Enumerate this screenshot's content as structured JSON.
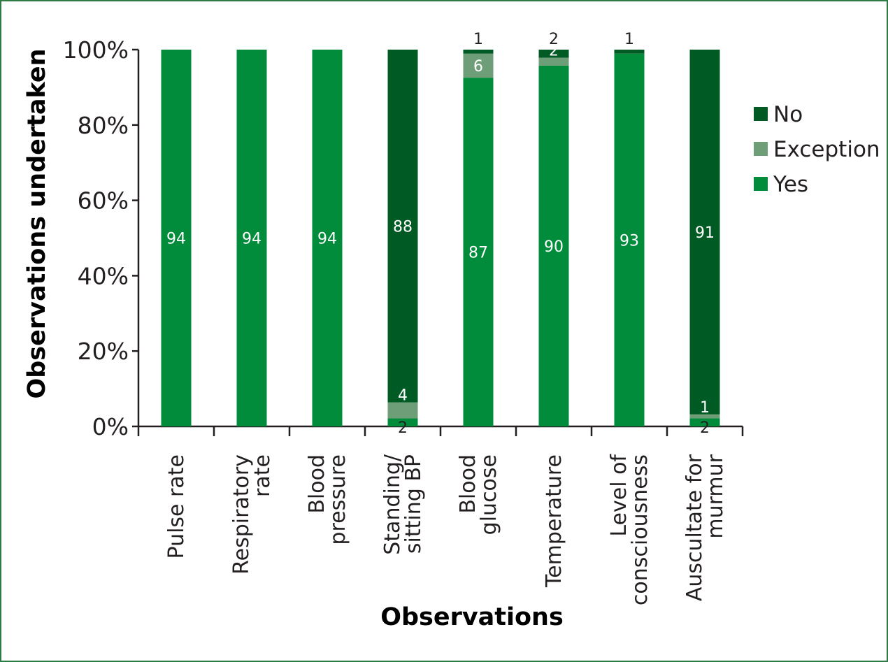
{
  "chart_data": {
    "type": "bar",
    "stacked": true,
    "normalized_percent": true,
    "categories": [
      [
        "Pulse rate"
      ],
      [
        "Respiratory",
        "rate"
      ],
      [
        "Blood",
        "pressure"
      ],
      [
        "Standing/",
        "sitting BP"
      ],
      [
        "Blood",
        "glucose"
      ],
      [
        "Temperature"
      ],
      [
        "Level of",
        "consciousness"
      ],
      [
        "Auscultate for",
        "murmur"
      ]
    ],
    "series": [
      {
        "name": "Yes",
        "color": "#008c3a",
        "values": [
          94,
          94,
          94,
          2,
          87,
          90,
          93,
          2
        ]
      },
      {
        "name": "Exception",
        "color": "#6d9e78",
        "values": [
          0,
          0,
          0,
          4,
          6,
          2,
          0,
          1
        ]
      },
      {
        "name": "No",
        "color": "#005a23",
        "values": [
          0,
          0,
          0,
          88,
          1,
          2,
          1,
          91
        ]
      }
    ],
    "data_labels": {
      "Yes": [
        "94",
        "94",
        "94",
        "2",
        "87",
        "90",
        "93",
        "2"
      ],
      "Exception": [
        "",
        "",
        "",
        "4",
        "6",
        "2",
        "",
        "1"
      ],
      "No": [
        "",
        "",
        "",
        "88",
        "1",
        "2",
        "1",
        "91"
      ]
    },
    "xlabel": "Observations",
    "ylabel": "Observations undertaken",
    "ylim": [
      0,
      100
    ],
    "yticks": [
      "0%",
      "20%",
      "40%",
      "60%",
      "80%",
      "100%"
    ],
    "legend": {
      "position": "right",
      "order": [
        "No",
        "Exception",
        "Yes"
      ]
    },
    "grid": false
  }
}
